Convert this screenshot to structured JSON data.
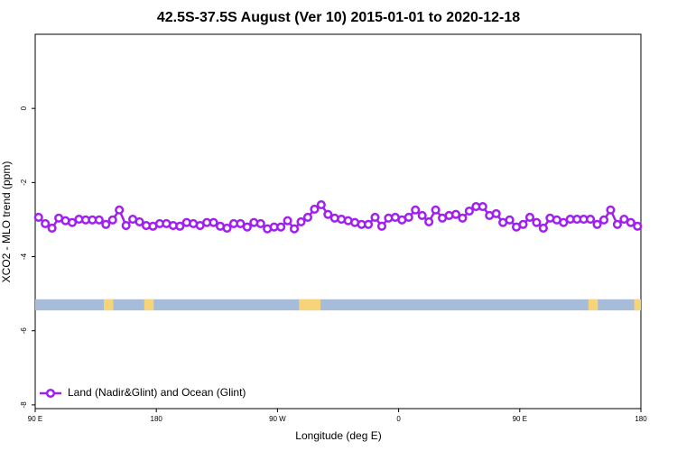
{
  "chart_data": {
    "type": "line",
    "title": "42.5S-37.5S August (Ver 10)   2015-01-01 to 2020-12-18",
    "x_label": "Longitude (deg E)",
    "y_label": "XCO2 - MLO trend (ppm)",
    "xlim": [
      90,
      540
    ],
    "ylim": [
      -8.1,
      2.0
    ],
    "xticks": [
      {
        "value": 90,
        "label": "90 E"
      },
      {
        "value": 180,
        "label": "180"
      },
      {
        "value": 270,
        "label": "90 W"
      },
      {
        "value": 360,
        "label": "0"
      },
      {
        "value": 450,
        "label": "90 E"
      },
      {
        "value": 540,
        "label": "180"
      }
    ],
    "yticks": [
      0,
      -2,
      -4,
      -6,
      -8
    ],
    "legend": "bottom-left",
    "x": [
      92.5,
      97.5,
      102.5,
      107.5,
      112.5,
      117.5,
      122.5,
      127.5,
      132.5,
      137.5,
      142.5,
      147.5,
      152.5,
      157.5,
      162.5,
      167.5,
      172.5,
      177.5,
      182.5,
      187.5,
      192.5,
      197.5,
      202.5,
      207.5,
      212.5,
      217.5,
      222.5,
      227.5,
      232.5,
      237.5,
      242.5,
      247.5,
      252.5,
      257.5,
      262.5,
      267.5,
      272.5,
      277.5,
      282.5,
      287.5,
      292.5,
      297.5,
      302.5,
      307.5,
      312.5,
      317.5,
      322.5,
      327.5,
      332.5,
      337.5,
      342.5,
      347.5,
      352.5,
      357.5,
      362.5,
      367.5,
      372.5,
      377.5,
      382.5,
      387.5,
      392.5,
      397.5,
      402.5,
      407.5,
      412.5,
      417.5,
      422.5,
      427.5,
      432.5,
      437.5,
      442.5,
      447.5,
      452.5,
      457.5,
      462.5,
      467.5,
      472.5,
      477.5,
      482.5,
      487.5,
      492.5,
      497.5,
      502.5,
      507.5,
      512.5,
      517.5,
      522.5,
      527.5,
      532.5,
      537.5
    ],
    "series": [
      {
        "name": "Land (Nadir&Glint) and Ocean (Glint)",
        "color": "#a020f0",
        "values": [
          -2.94,
          -3.11,
          -3.23,
          -2.96,
          -3.03,
          -3.08,
          -2.99,
          -3.01,
          -3.01,
          -3.01,
          -3.13,
          -3.01,
          -2.74,
          -3.16,
          -2.99,
          -3.06,
          -3.16,
          -3.18,
          -3.11,
          -3.11,
          -3.16,
          -3.18,
          -3.08,
          -3.11,
          -3.16,
          -3.08,
          -3.08,
          -3.18,
          -3.23,
          -3.11,
          -3.11,
          -3.2,
          -3.08,
          -3.11,
          -3.25,
          -3.2,
          -3.2,
          -3.03,
          -3.25,
          -3.06,
          -2.94,
          -2.72,
          -2.6,
          -2.86,
          -2.96,
          -2.99,
          -3.03,
          -3.08,
          -3.13,
          -3.13,
          -2.94,
          -3.18,
          -2.96,
          -2.94,
          -3.01,
          -2.94,
          -2.74,
          -2.89,
          -3.06,
          -2.74,
          -2.96,
          -2.89,
          -2.86,
          -2.96,
          -2.77,
          -2.65,
          -2.65,
          -2.89,
          -2.84,
          -3.08,
          -3.01,
          -3.2,
          -3.13,
          -2.94,
          -3.08,
          -3.23,
          -2.96,
          -3.01,
          -3.08,
          -2.99,
          -2.99,
          -2.99,
          -2.99,
          -3.13,
          -3.01,
          -2.74,
          -3.13,
          -2.99,
          -3.08,
          -3.18
        ]
      }
    ],
    "surface_band": {
      "ylim": [
        -5.15,
        -5.45
      ],
      "color": "#a6bcd9",
      "land_color": "#f5d47a",
      "land_lon": [
        [
          141,
          148
        ],
        [
          171,
          178
        ],
        [
          286,
          302
        ],
        [
          501,
          508
        ],
        [
          535,
          540
        ]
      ]
    }
  }
}
